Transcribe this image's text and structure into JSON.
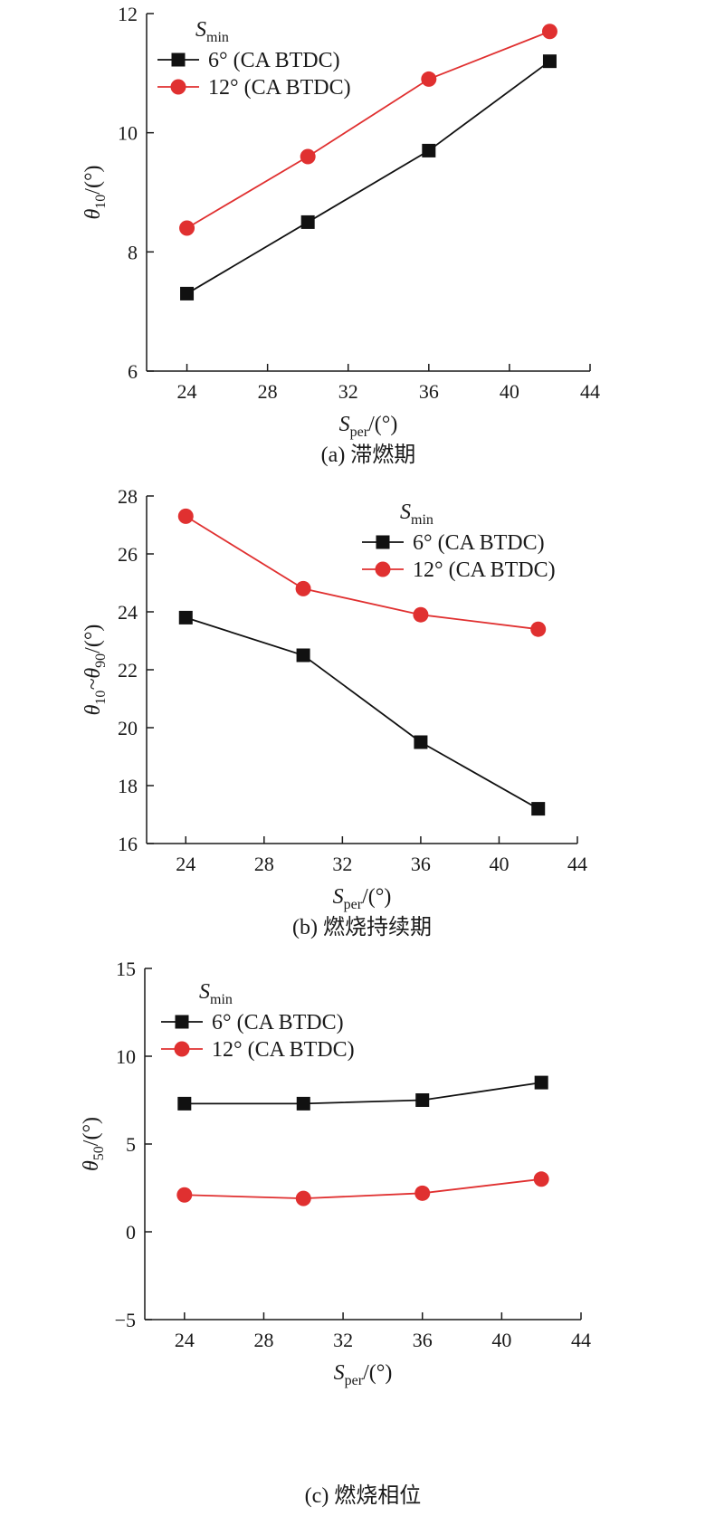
{
  "chart_data": [
    {
      "type": "line",
      "caption": "(a) 滞燃期",
      "ylabel": {
        "symbol": "θ",
        "sub": "10",
        "unit": "/(°)"
      },
      "xlabel": {
        "symbol": "S",
        "sub": "per",
        "unit": "/(°)"
      },
      "xlim": [
        22,
        44
      ],
      "ylim": [
        6,
        12
      ],
      "xticks": [
        24,
        28,
        32,
        36,
        40,
        44
      ],
      "yticks": [
        6,
        8,
        10,
        12
      ],
      "x": [
        24,
        30,
        36,
        42
      ],
      "legend": {
        "title": "S",
        "title_sub": "min",
        "position": "top-left"
      },
      "series": [
        {
          "name": "6° (CA BTDC)",
          "marker": "square",
          "color": "#111111",
          "values": [
            7.3,
            8.5,
            9.7,
            11.2
          ]
        },
        {
          "name": "12° (CA BTDC)",
          "marker": "circle",
          "color": "#e03030",
          "values": [
            8.4,
            9.6,
            10.9,
            11.7
          ]
        }
      ]
    },
    {
      "type": "line",
      "caption": "(b) 燃烧持续期",
      "ylabel": {
        "symbol": "θ",
        "sub": "10",
        "mid": "~θ",
        "sub2": "90",
        "unit": "/(°)"
      },
      "xlabel": {
        "symbol": "S",
        "sub": "per",
        "unit": "/(°)"
      },
      "xlim": [
        22,
        44
      ],
      "ylim": [
        16,
        28
      ],
      "xticks": [
        24,
        28,
        32,
        36,
        40,
        44
      ],
      "yticks": [
        16,
        18,
        20,
        22,
        24,
        26,
        28
      ],
      "x": [
        24,
        30,
        36,
        42
      ],
      "legend": {
        "title": "S",
        "title_sub": "min",
        "position": "top-right"
      },
      "series": [
        {
          "name": "6° (CA BTDC)",
          "marker": "square",
          "color": "#111111",
          "values": [
            23.8,
            22.5,
            19.5,
            17.2
          ]
        },
        {
          "name": "12° (CA BTDC)",
          "marker": "circle",
          "color": "#e03030",
          "values": [
            27.3,
            24.8,
            23.9,
            23.4
          ]
        }
      ]
    },
    {
      "type": "line",
      "caption": "(c) 燃烧相位",
      "ylabel": {
        "symbol": "θ",
        "sub": "50",
        "unit": "/(°)"
      },
      "xlabel": {
        "symbol": "S",
        "sub": "per",
        "unit": "/(°)"
      },
      "xlim": [
        22,
        44
      ],
      "ylim": [
        -5,
        15
      ],
      "xticks": [
        24,
        28,
        32,
        36,
        40,
        44
      ],
      "yticks": [
        -5,
        0,
        5,
        10,
        15
      ],
      "ytick_labels": [
        "−5",
        "0",
        "5",
        "10",
        "15"
      ],
      "x": [
        24,
        30,
        36,
        42
      ],
      "legend": {
        "title": "S",
        "title_sub": "min",
        "position": "top-left"
      },
      "series": [
        {
          "name": "6° (CA BTDC)",
          "marker": "square",
          "color": "#111111",
          "values": [
            7.3,
            7.3,
            7.5,
            8.5
          ]
        },
        {
          "name": "12° (CA BTDC)",
          "marker": "circle",
          "color": "#e03030",
          "values": [
            2.1,
            1.9,
            2.2,
            3.0
          ]
        }
      ]
    }
  ]
}
